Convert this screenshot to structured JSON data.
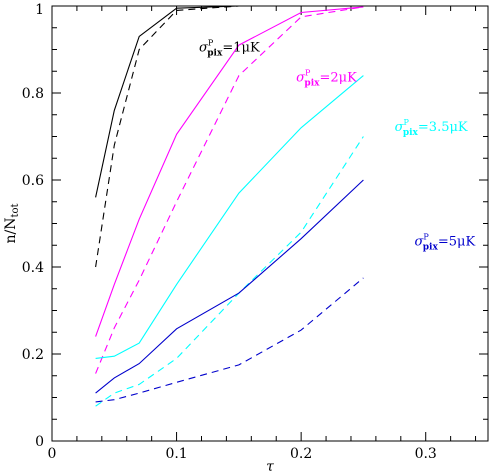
{
  "chart_data": {
    "type": "line",
    "title": "",
    "xlabel": "τ",
    "ylabel": "n/N",
    "ylabel_subscript": "tot",
    "xlim": [
      0,
      0.35
    ],
    "ylim": [
      0,
      1
    ],
    "x_ticks": [
      0,
      0.1,
      0.2,
      0.3
    ],
    "x_tick_labels": [
      "0",
      "0.1",
      "0.2",
      "0.3"
    ],
    "y_ticks": [
      0,
      0.2,
      0.4,
      0.6,
      0.8,
      1
    ],
    "y_tick_labels": [
      "0",
      "0.2",
      "0.4",
      "0.6",
      "0.8",
      "1"
    ],
    "grid": false,
    "legend": "none",
    "series": [
      {
        "color": "#000000",
        "dash": false,
        "x": [
          0.035,
          0.05,
          0.07,
          0.1,
          0.15
        ],
        "y": [
          0.56,
          0.76,
          0.93,
          0.995,
          1.0
        ]
      },
      {
        "color": "#000000",
        "dash": true,
        "x": [
          0.035,
          0.05,
          0.07,
          0.1,
          0.15
        ],
        "y": [
          0.4,
          0.68,
          0.9,
          0.99,
          1.0
        ]
      },
      {
        "color": "#ff00ff",
        "dash": false,
        "x": [
          0.035,
          0.05,
          0.07,
          0.1,
          0.15,
          0.2,
          0.25
        ],
        "y": [
          0.24,
          0.36,
          0.51,
          0.705,
          0.91,
          0.985,
          0.998
        ]
      },
      {
        "color": "#ff00ff",
        "dash": true,
        "x": [
          0.035,
          0.05,
          0.07,
          0.1,
          0.15,
          0.2,
          0.25
        ],
        "y": [
          0.155,
          0.26,
          0.37,
          0.55,
          0.84,
          0.975,
          0.998
        ]
      },
      {
        "color": "#00ffff",
        "dash": false,
        "x": [
          0.035,
          0.05,
          0.07,
          0.1,
          0.15,
          0.2,
          0.25
        ],
        "y": [
          0.19,
          0.195,
          0.225,
          0.36,
          0.57,
          0.72,
          0.84
        ]
      },
      {
        "color": "#00ffff",
        "dash": true,
        "x": [
          0.035,
          0.05,
          0.07,
          0.1,
          0.15,
          0.2,
          0.25
        ],
        "y": [
          0.08,
          0.11,
          0.13,
          0.19,
          0.34,
          0.48,
          0.7
        ]
      },
      {
        "color": "#0000cc",
        "dash": false,
        "x": [
          0.035,
          0.05,
          0.07,
          0.1,
          0.15,
          0.2,
          0.25
        ],
        "y": [
          0.11,
          0.145,
          0.178,
          0.258,
          0.34,
          0.465,
          0.6
        ]
      },
      {
        "color": "#0000cc",
        "dash": true,
        "x": [
          0.035,
          0.05,
          0.07,
          0.1,
          0.15,
          0.2,
          0.25
        ],
        "y": [
          0.09,
          0.095,
          0.11,
          0.135,
          0.175,
          0.255,
          0.375
        ]
      }
    ],
    "annotations": [
      {
        "sigma": "σ",
        "sup": "P",
        "sub": "pix",
        "rest": "=1μK",
        "color": "#000000",
        "x": 0.118,
        "y": 0.895
      },
      {
        "sigma": "σ",
        "sup": "P",
        "sub": "pix",
        "rest": "=2μK",
        "color": "#ff00ff",
        "x": 0.196,
        "y": 0.826
      },
      {
        "sigma": "σ",
        "sup": "P",
        "sub": "pix",
        "rest": "=3.5μK",
        "color": "#00ffff",
        "x": 0.275,
        "y": 0.713
      },
      {
        "sigma": "σ",
        "sup": "P",
        "sub": "pix",
        "rest": "=5μK",
        "color": "#0000cc",
        "x": 0.291,
        "y": 0.45
      }
    ]
  }
}
